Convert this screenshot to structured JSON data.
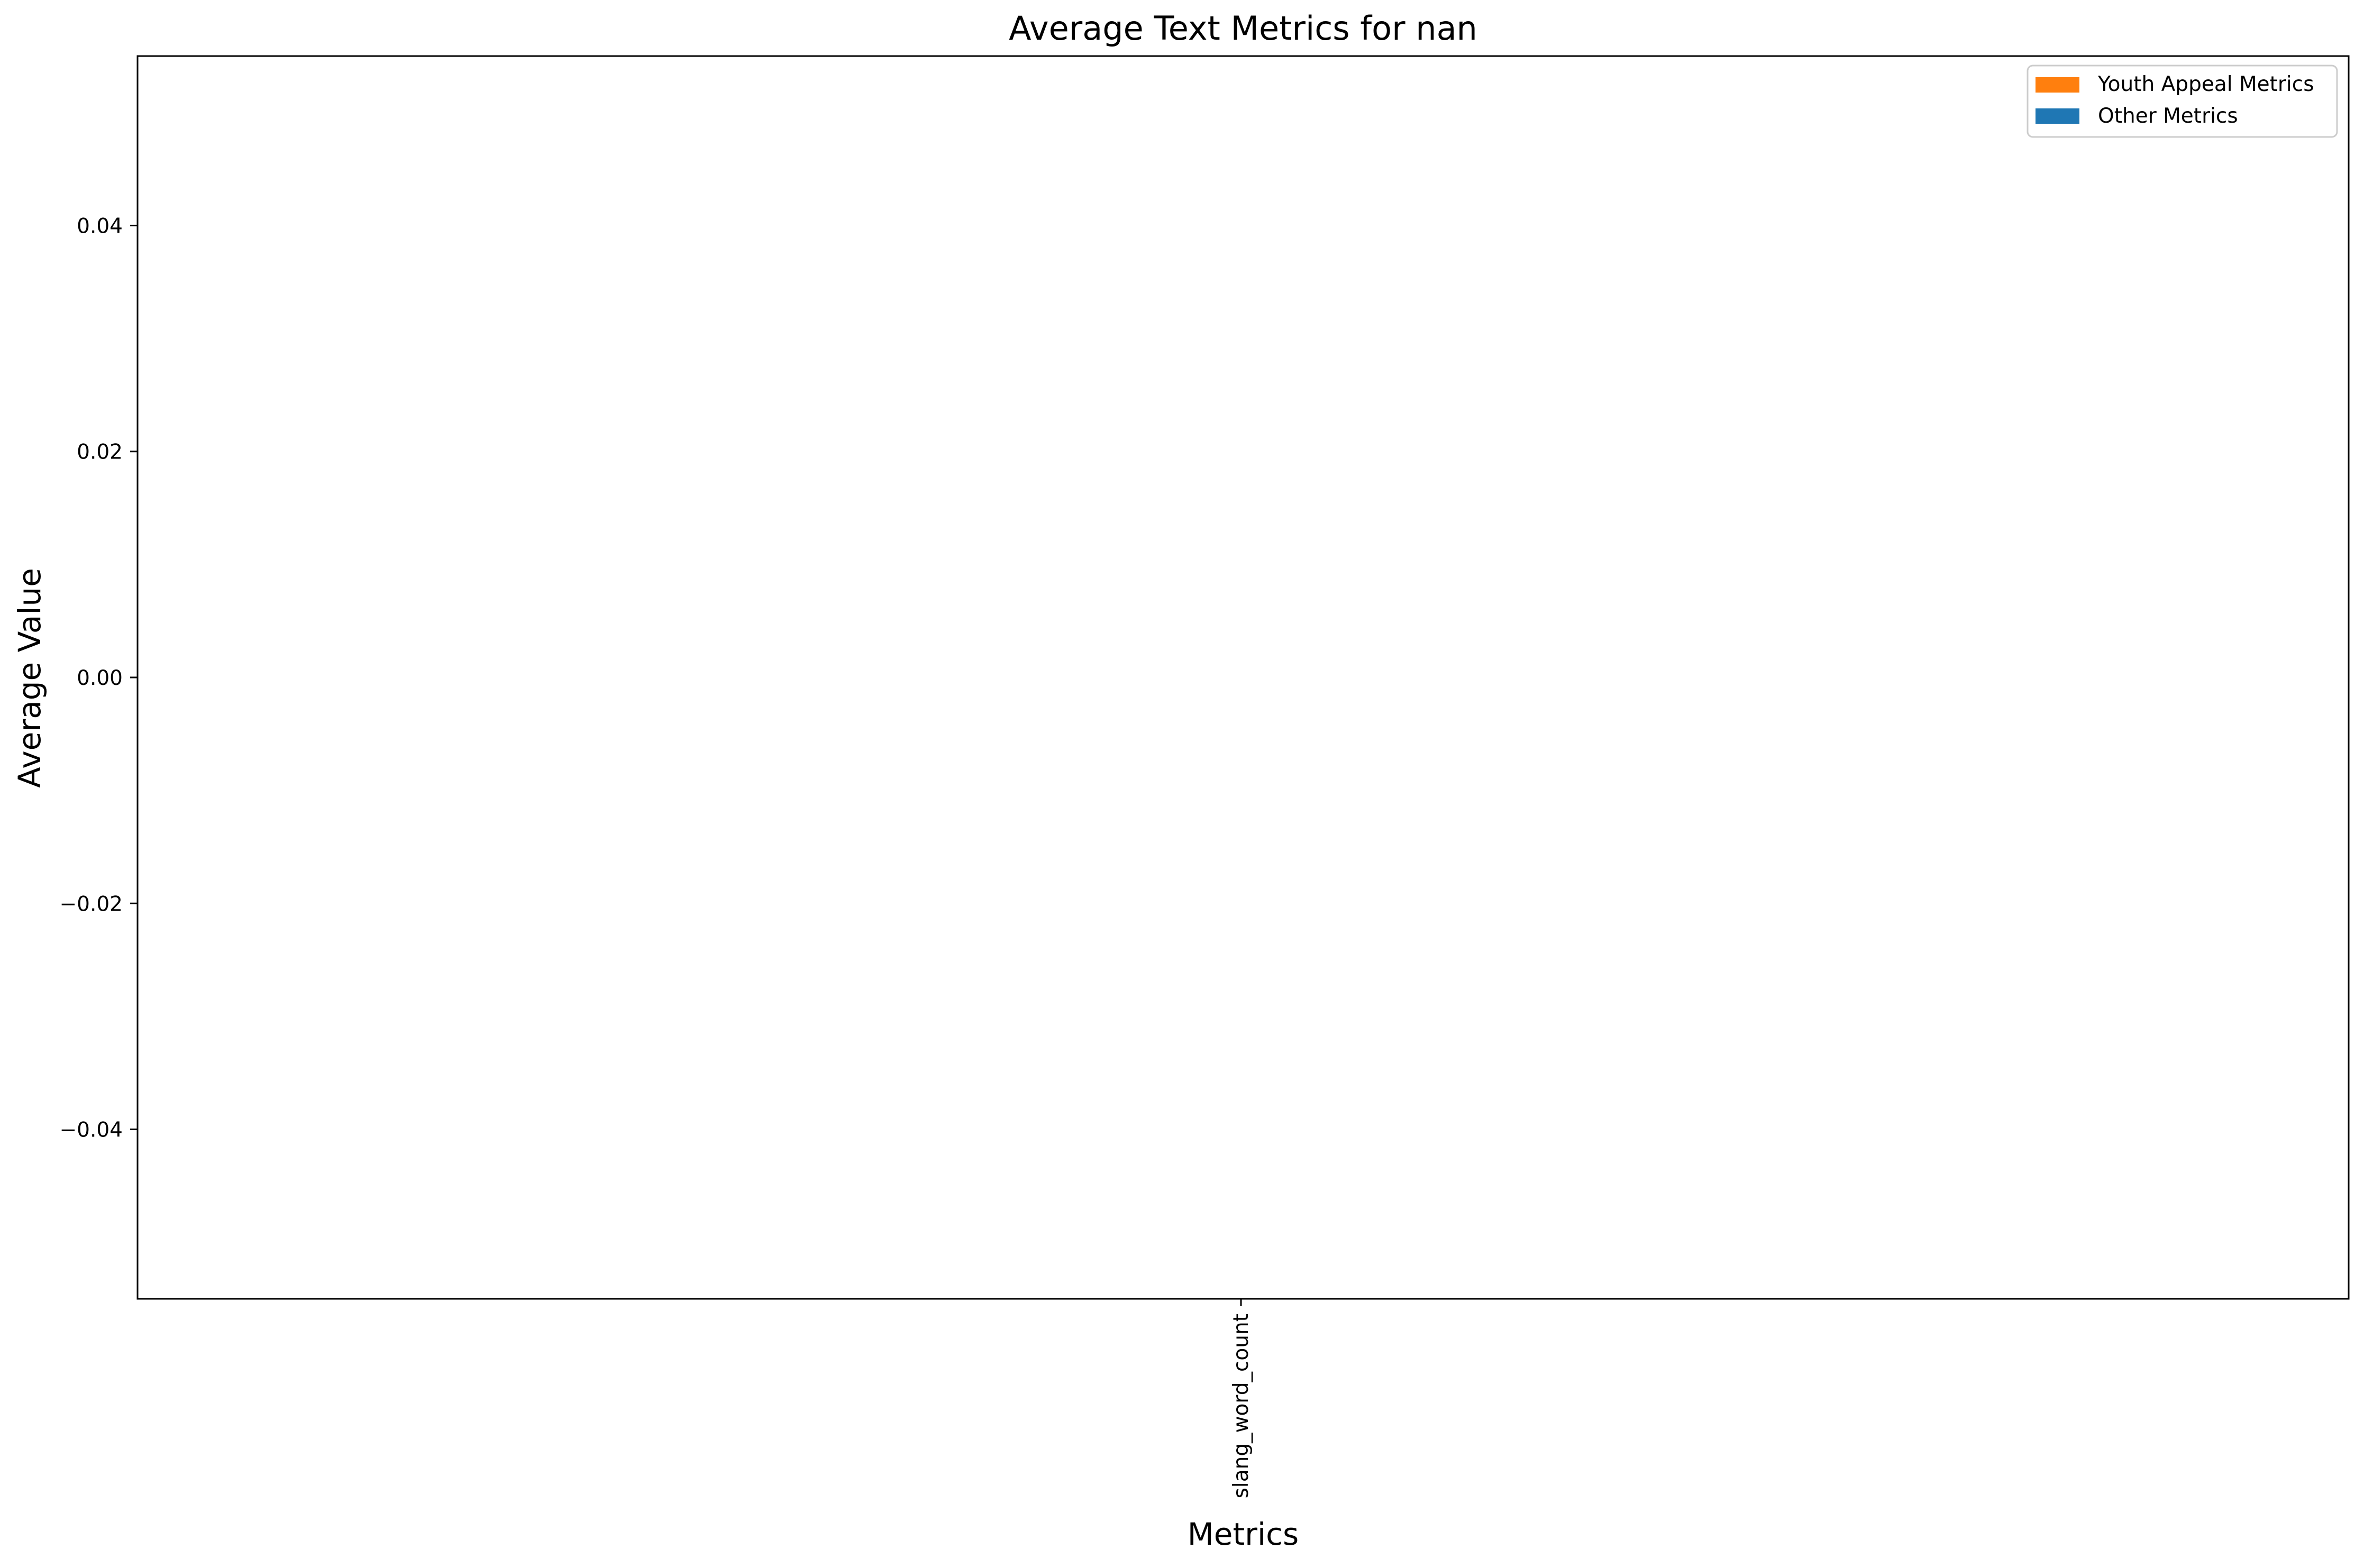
{
  "chart_data": {
    "type": "bar",
    "title": "Average Text Metrics for nan",
    "xlabel": "Metrics",
    "ylabel": "Average Value",
    "categories": [
      "slang_word_count"
    ],
    "series": [
      {
        "name": "Youth Appeal Metrics",
        "color": "#ff7f0e",
        "values": [
          null
        ]
      },
      {
        "name": "Other Metrics",
        "color": "#1f77b4",
        "values": [
          null
        ]
      }
    ],
    "ylim": [
      -0.055,
      0.055
    ],
    "yticks": [
      0.04,
      0.02,
      0.0,
      -0.02,
      -0.04
    ],
    "ytick_labels": [
      "0.04",
      "0.02",
      "0.00",
      "−0.02",
      "−0.04"
    ],
    "grid": false,
    "legend": {
      "position": "top-right"
    }
  }
}
